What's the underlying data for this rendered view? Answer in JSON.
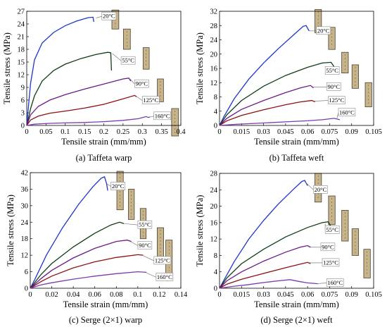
{
  "colors": {
    "20C": "#1f35c8",
    "55C": "#0e3d16",
    "90C": "#6a1a8a",
    "125C": "#8b1010",
    "160C": "#7a3ab0",
    "specimen_fill": "#c8b48a",
    "specimen_edge": "#4a4030"
  },
  "chart_data": [
    {
      "type": "line",
      "caption": "(a) Taffeta warp",
      "xlabel": "Tensile strain (mm/mm)",
      "ylabel": "Tensile stress (MPa)",
      "xlim": [
        0,
        0.4
      ],
      "ylim": [
        0,
        27
      ],
      "xticks": [
        0,
        0.05,
        0.1,
        0.15,
        0.2,
        0.25,
        0.3,
        0.35,
        0.4
      ],
      "xtick_labels": [
        "0",
        "0.05",
        "0.1",
        "0.15",
        "0.2",
        "0.25",
        "0.3",
        "0.35",
        "0.4"
      ],
      "yticks": [
        0,
        3,
        6,
        9,
        12,
        15,
        18,
        21,
        24,
        27
      ],
      "ytick_labels": [
        "0",
        "3",
        "6",
        "9",
        "12",
        "15",
        "18",
        "21",
        "24",
        "27"
      ],
      "series": [
        {
          "name": "20°C",
          "color_key": "20C",
          "x": [
            0,
            0.005,
            0.01,
            0.02,
            0.04,
            0.07,
            0.1,
            0.13,
            0.16,
            0.172,
            0.174
          ],
          "y": [
            0,
            5,
            10,
            15.5,
            19.5,
            22,
            23.6,
            24.7,
            25.5,
            25.6,
            24.5
          ]
        },
        {
          "name": "55°C",
          "color_key": "55C",
          "x": [
            0,
            0.01,
            0.02,
            0.04,
            0.07,
            0.1,
            0.14,
            0.18,
            0.21,
            0.218,
            0.22
          ],
          "y": [
            0,
            4,
            7,
            10.5,
            13,
            14.5,
            15.8,
            16.8,
            17.3,
            17.2,
            13
          ]
        },
        {
          "name": "90°C",
          "color_key": "90C",
          "x": [
            0,
            0.01,
            0.03,
            0.06,
            0.1,
            0.15,
            0.2,
            0.25,
            0.265,
            0.27
          ],
          "y": [
            0,
            2.5,
            4.5,
            6,
            7.3,
            8.6,
            9.8,
            11,
            11.2,
            10.5
          ]
        },
        {
          "name": "125°C",
          "color_key": "125C",
          "x": [
            0,
            0.01,
            0.03,
            0.06,
            0.1,
            0.15,
            0.2,
            0.25,
            0.28,
            0.285
          ],
          "y": [
            0,
            1.3,
            2.2,
            2.9,
            3.4,
            4.1,
            5,
            6.3,
            7.1,
            6.8
          ]
        },
        {
          "name": "160°C",
          "color_key": "160C",
          "x": [
            0,
            0.02,
            0.06,
            0.1,
            0.15,
            0.2,
            0.25,
            0.29,
            0.31,
            0.315,
            0.32
          ],
          "y": [
            0,
            0.3,
            0.5,
            0.6,
            0.7,
            0.9,
            1.2,
            1.6,
            2.1,
            1.9,
            2
          ]
        }
      ],
      "labels": [
        {
          "text": "20°C",
          "series": 0,
          "at": [
            0.18,
            25.4
          ],
          "box": [
            0.195,
            25.8
          ]
        },
        {
          "text": "55°C",
          "series": 1,
          "at": [
            0.222,
            17
          ],
          "box": [
            0.245,
            15.3
          ]
        },
        {
          "text": "90°C",
          "series": 2,
          "at": [
            0.268,
            11
          ],
          "box": [
            0.28,
            9.8
          ]
        },
        {
          "text": "125°C",
          "series": 3,
          "at": [
            0.283,
            7
          ],
          "box": [
            0.3,
            5.9
          ]
        },
        {
          "text": "160°C",
          "series": 4,
          "at": [
            0.32,
            2
          ],
          "box": [
            0.33,
            2.2
          ]
        }
      ],
      "specimens": [
        [
          0.23,
          27.3,
          0.018,
          4.5
        ],
        [
          0.26,
          22.8,
          0.018,
          4.8
        ],
        [
          0.31,
          18.4,
          0.016,
          5.1
        ],
        [
          0.347,
          11,
          0.016,
          5.4
        ],
        [
          0.385,
          4,
          0.018,
          6.5
        ]
      ]
    },
    {
      "type": "line",
      "caption": "(b) Taffeta weft",
      "xlabel": "Tensile strain (mm/mm)",
      "ylabel": "Tensile stress (MPa)",
      "xlim": [
        0,
        0.105
      ],
      "ylim": [
        0,
        32
      ],
      "xticks": [
        0,
        0.015,
        0.03,
        0.045,
        0.06,
        0.075,
        0.09,
        0.105
      ],
      "xtick_labels": [
        "0",
        "0.015",
        "0.03",
        "0.045",
        "0.06",
        "0.075",
        "0.09",
        "0.105"
      ],
      "yticks": [
        0,
        4,
        8,
        12,
        16,
        20,
        24,
        28,
        32
      ],
      "ytick_labels": [
        "0",
        "4",
        "8",
        "12",
        "16",
        "20",
        "24",
        "28",
        "32"
      ],
      "series": [
        {
          "name": "20°C",
          "color_key": "20C",
          "x": [
            0,
            0.003,
            0.01,
            0.02,
            0.03,
            0.04,
            0.05,
            0.057,
            0.059,
            0.061
          ],
          "y": [
            0,
            2.5,
            7.5,
            13,
            17.5,
            21.5,
            25.2,
            27.8,
            28,
            26.5
          ]
        },
        {
          "name": "55°C",
          "color_key": "55C",
          "x": [
            0,
            0.005,
            0.015,
            0.03,
            0.045,
            0.06,
            0.07,
            0.076,
            0.078
          ],
          "y": [
            0,
            3,
            7,
            11,
            14,
            16.3,
            17.5,
            17.7,
            16.5
          ]
        },
        {
          "name": "90°C",
          "color_key": "90C",
          "x": [
            0,
            0.005,
            0.015,
            0.03,
            0.045,
            0.055,
            0.062,
            0.064
          ],
          "y": [
            0,
            2,
            4.5,
            7,
            9.2,
            10.5,
            11.2,
            10.5
          ]
        },
        {
          "name": "125°C",
          "color_key": "125C",
          "x": [
            0,
            0.005,
            0.015,
            0.03,
            0.045,
            0.055,
            0.063,
            0.065
          ],
          "y": [
            0,
            1.3,
            2.8,
            4.4,
            5.8,
            6.6,
            7,
            6.6
          ]
        },
        {
          "name": "160°C",
          "color_key": "160C",
          "x": [
            0,
            0.01,
            0.02,
            0.03,
            0.045,
            0.06,
            0.07,
            0.078,
            0.082
          ],
          "y": [
            0,
            0.3,
            0.5,
            0.7,
            1,
            1.3,
            1.6,
            2,
            1.6
          ]
        }
      ],
      "labels": [
        {
          "text": "20°C",
          "series": 0,
          "at": [
            0.061,
            26.5
          ],
          "box": [
            0.066,
            26.5
          ]
        },
        {
          "text": "55°C",
          "series": 1,
          "at": [
            0.072,
            15.5
          ],
          "box": [
            0.072,
            15.3
          ]
        },
        {
          "text": "90°C",
          "series": 2,
          "at": [
            0.064,
            10.8
          ],
          "box": [
            0.073,
            10.8
          ]
        },
        {
          "text": "125°C",
          "series": 3,
          "at": [
            0.064,
            6.8
          ],
          "box": [
            0.074,
            7
          ]
        },
        {
          "text": "160°C",
          "series": 4,
          "at": [
            0.08,
            2
          ],
          "box": [
            0.081,
            3.6
          ]
        }
      ],
      "specimens": [
        [
          0.0672,
          32.5,
          0.0045,
          6.5
        ],
        [
          0.0765,
          27.5,
          0.0045,
          6.2
        ],
        [
          0.0855,
          20.5,
          0.0045,
          5.8
        ],
        [
          0.0925,
          17,
          0.0045,
          6.6
        ],
        [
          0.1015,
          12,
          0.0045,
          6.8
        ]
      ]
    },
    {
      "type": "line",
      "caption": "(c) Serge (2×1) warp",
      "xlabel": "Tensile strain (mm/mm)",
      "ylabel": "Tensile stress (MPa)",
      "xlim": [
        0,
        0.14
      ],
      "ylim": [
        0,
        42
      ],
      "xticks": [
        0,
        0.02,
        0.04,
        0.06,
        0.08,
        0.1,
        0.12,
        0.14
      ],
      "xtick_labels": [
        "0",
        "0.02",
        "0.04",
        "0.06",
        "0.08",
        "0.1",
        "0.12",
        "0.14"
      ],
      "yticks": [
        0,
        6,
        12,
        18,
        24,
        30,
        36,
        42
      ],
      "ytick_labels": [
        "0",
        "6",
        "12",
        "18",
        "24",
        "30",
        "36",
        "42"
      ],
      "series": [
        {
          "name": "20°C",
          "color_key": "20C",
          "x": [
            0,
            0.004,
            0.015,
            0.03,
            0.045,
            0.058,
            0.066,
            0.069,
            0.071,
            0.072
          ],
          "y": [
            0,
            3,
            12,
            22,
            30.5,
            36.8,
            40,
            40.5,
            38,
            35.5
          ]
        },
        {
          "name": "55°C",
          "color_key": "55C",
          "x": [
            0,
            0.01,
            0.02,
            0.04,
            0.06,
            0.075,
            0.083,
            0.087
          ],
          "y": [
            0,
            5,
            9,
            15,
            20,
            23,
            24,
            23.5
          ]
        },
        {
          "name": "90°C",
          "color_key": "90C",
          "x": [
            0,
            0.01,
            0.02,
            0.04,
            0.06,
            0.08,
            0.09,
            0.094
          ],
          "y": [
            0,
            3.5,
            6.5,
            11,
            14.5,
            17,
            17.5,
            17
          ]
        },
        {
          "name": "125°C",
          "color_key": "125C",
          "x": [
            0,
            0.01,
            0.02,
            0.04,
            0.06,
            0.08,
            0.1,
            0.105
          ],
          "y": [
            0,
            2.4,
            4.4,
            7.4,
            9.6,
            11.2,
            12.2,
            12
          ]
        },
        {
          "name": "160°C",
          "color_key": "160C",
          "x": [
            0,
            0.01,
            0.02,
            0.04,
            0.06,
            0.08,
            0.1,
            0.108
          ],
          "y": [
            0,
            1.2,
            2,
            3.3,
            4.4,
            5.3,
            6,
            5.8
          ]
        }
      ],
      "labels": [
        {
          "text": "20°C",
          "series": 0,
          "at": [
            0.071,
            38
          ],
          "box": [
            0.075,
            37
          ]
        },
        {
          "text": "55°C",
          "series": 1,
          "at": [
            0.087,
            23.5
          ],
          "box": [
            0.1,
            23
          ]
        },
        {
          "text": "90°C",
          "series": 2,
          "at": [
            0.093,
            17
          ],
          "box": [
            0.1,
            15.5
          ]
        },
        {
          "text": "125°C",
          "series": 3,
          "at": [
            0.104,
            12
          ],
          "box": [
            0.115,
            10
          ]
        },
        {
          "text": "160°C",
          "series": 4,
          "at": [
            0.107,
            5.8
          ],
          "box": [
            0.117,
            4
          ]
        }
      ],
      "specimens": [
        [
          0.0835,
          42.5,
          0.006,
          14
        ],
        [
          0.094,
          36,
          0.0055,
          11
        ],
        [
          0.105,
          29,
          0.0055,
          11
        ],
        [
          0.121,
          22,
          0.006,
          11
        ],
        [
          0.129,
          17.5,
          0.006,
          12
        ]
      ]
    },
    {
      "type": "line",
      "caption": "(d) Serge (2×1) weft",
      "xlabel": "Tensile strain (mm/mm)",
      "ylabel": "Tensile stress (MPa)",
      "xlim": [
        0,
        0.105
      ],
      "ylim": [
        0,
        28
      ],
      "xticks": [
        0,
        0.015,
        0.03,
        0.045,
        0.06,
        0.075,
        0.09,
        0.105
      ],
      "xtick_labels": [
        "0",
        "0.015",
        "0.03",
        "0.045",
        "0.06",
        "0.075",
        "0.09",
        "0.105"
      ],
      "yticks": [
        0,
        4,
        8,
        12,
        16,
        20,
        24,
        28
      ],
      "ytick_labels": [
        "0",
        "4",
        "8",
        "12",
        "16",
        "20",
        "24",
        "28"
      ],
      "series": [
        {
          "name": "20°C",
          "color_key": "20C",
          "x": [
            0,
            0.003,
            0.01,
            0.02,
            0.03,
            0.04,
            0.05,
            0.056,
            0.058,
            0.06
          ],
          "y": [
            0,
            2,
            6.5,
            12,
            16.5,
            20.5,
            24,
            26,
            26.3,
            25
          ]
        },
        {
          "name": "55°C",
          "color_key": "55C",
          "x": [
            0,
            0.005,
            0.015,
            0.03,
            0.045,
            0.06,
            0.07,
            0.074,
            0.076
          ],
          "y": [
            0,
            2.5,
            6,
            9.5,
            12.5,
            14.8,
            16,
            16.2,
            15
          ]
        },
        {
          "name": "90°C",
          "color_key": "90C",
          "x": [
            0,
            0.005,
            0.015,
            0.03,
            0.045,
            0.055,
            0.06,
            0.062
          ],
          "y": [
            0,
            1.8,
            4,
            6.6,
            8.8,
            10,
            10.4,
            10
          ]
        },
        {
          "name": "125°C",
          "color_key": "125C",
          "x": [
            0,
            0.005,
            0.015,
            0.03,
            0.045,
            0.055,
            0.06,
            0.062
          ],
          "y": [
            0,
            1,
            2.2,
            3.6,
            5,
            5.9,
            6.3,
            6
          ]
        },
        {
          "name": "160°C",
          "color_key": "160C",
          "x": [
            0,
            0.01,
            0.02,
            0.03,
            0.04,
            0.048,
            0.055,
            0.06,
            0.067
          ],
          "y": [
            0,
            0.5,
            0.9,
            1.4,
            1.8,
            2.1,
            1.6,
            1.3,
            1.1
          ]
        }
      ],
      "labels": [
        {
          "text": "20°C",
          "series": 0,
          "at": [
            0.058,
            26
          ],
          "box": [
            0.064,
            24
          ]
        },
        {
          "text": "55°C",
          "series": 1,
          "at": [
            0.072,
            15.8
          ],
          "box": [
            0.072,
            14.2
          ]
        },
        {
          "text": "90°C",
          "series": 2,
          "at": [
            0.061,
            10
          ],
          "box": [
            0.069,
            10
          ]
        },
        {
          "text": "125°C",
          "series": 3,
          "at": [
            0.061,
            6.2
          ],
          "box": [
            0.07,
            6.2
          ]
        },
        {
          "text": "160°C",
          "series": 4,
          "at": [
            0.066,
            1.1
          ],
          "box": [
            0.073,
            1.3
          ]
        }
      ],
      "specimens": [
        [
          0.0672,
          28,
          0.0045,
          7
        ],
        [
          0.0765,
          22.5,
          0.0045,
          7
        ],
        [
          0.0855,
          19,
          0.0045,
          7.5
        ],
        [
          0.0925,
          14.5,
          0.0045,
          6.5
        ],
        [
          0.1005,
          9.5,
          0.0045,
          7
        ]
      ]
    }
  ]
}
